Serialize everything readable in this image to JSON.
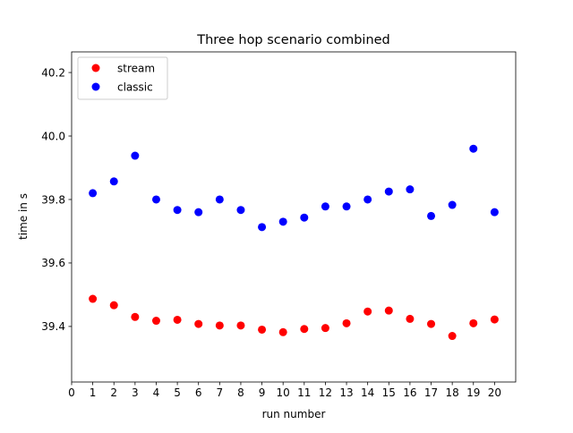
{
  "chart_data": {
    "type": "scatter",
    "title": "Three hop scenario combined",
    "xlabel": "run number",
    "ylabel": "time in s",
    "xlim": [
      0,
      21
    ],
    "ylim": [
      39.225,
      40.265
    ],
    "x_ticks": [
      0,
      1,
      2,
      3,
      4,
      5,
      6,
      7,
      8,
      9,
      10,
      11,
      12,
      13,
      14,
      15,
      16,
      17,
      18,
      19,
      20
    ],
    "y_ticks": [
      39.4,
      39.6,
      39.8,
      40.0,
      40.2
    ],
    "y_tick_labels": [
      "39.4",
      "39.6",
      "39.8",
      "40.0",
      "40.2"
    ],
    "grid": false,
    "legend_position": "upper-left",
    "x": [
      1,
      2,
      3,
      4,
      5,
      6,
      7,
      8,
      9,
      10,
      11,
      12,
      13,
      14,
      15,
      16,
      17,
      18,
      19,
      20
    ],
    "series": [
      {
        "name": "stream",
        "color": "#ff0000",
        "values": [
          39.487,
          39.467,
          39.43,
          39.418,
          39.421,
          39.408,
          39.403,
          39.403,
          39.39,
          39.382,
          39.392,
          39.395,
          39.41,
          39.447,
          39.45,
          39.424,
          39.408,
          39.37,
          39.41,
          39.422
        ]
      },
      {
        "name": "classic",
        "color": "#0000ff",
        "values": [
          39.82,
          39.857,
          39.938,
          39.8,
          39.767,
          39.76,
          39.8,
          39.767,
          39.713,
          39.73,
          39.743,
          39.778,
          39.778,
          39.8,
          39.825,
          39.832,
          39.748,
          39.783,
          39.96,
          39.76
        ]
      }
    ]
  }
}
